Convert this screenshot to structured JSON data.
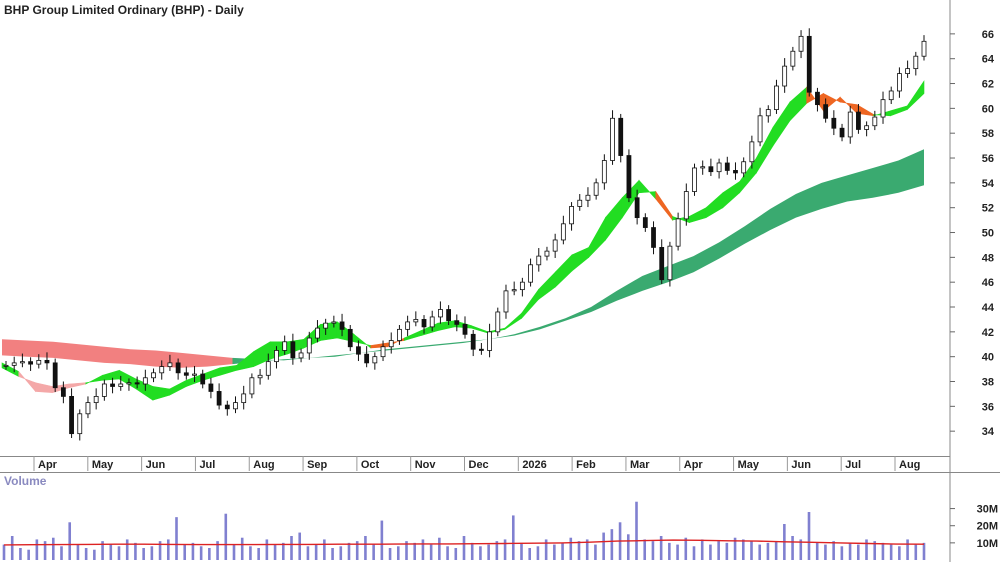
{
  "chart_title": "BHP Group Limited Ordinary (BHP) - Daily",
  "volume_title": "Volume",
  "chart_data": {
    "type": "line",
    "price_axis": {
      "ticks": [
        34,
        36,
        38,
        40,
        42,
        44,
        46,
        48,
        50,
        52,
        54,
        56,
        58,
        60,
        62,
        64,
        66
      ],
      "range": [
        32.0,
        67.6
      ]
    },
    "volume_axis": {
      "ticks": [
        10000000,
        20000000,
        30000000
      ],
      "tick_labels": [
        "10M",
        "20M",
        "30M"
      ],
      "range": [
        0,
        42000000
      ]
    },
    "x_axis_labels": [
      "Apr",
      "May",
      "Jun",
      "Jul",
      "Aug",
      "Sep",
      "Oct",
      "Nov",
      "Dec",
      "2026",
      "Feb",
      "Mar",
      "Apr",
      "May",
      "Jun",
      "Jul",
      "Aug"
    ],
    "price_series": [
      39.3,
      39.5,
      39.6,
      39.4,
      39.7,
      39.5,
      37.5,
      36.8,
      33.8,
      35.4,
      36.3,
      36.8,
      37.8,
      37.6,
      37.8,
      37.9,
      37.8,
      38.3,
      38.7,
      39.2,
      39.5,
      38.7,
      38.5,
      38.6,
      37.8,
      37.2,
      36.1,
      35.8,
      36.3,
      37.0,
      38.3,
      38.5,
      39.6,
      40.5,
      41.2,
      39.9,
      40.3,
      41.5,
      42.3,
      42.7,
      42.8,
      42.2,
      40.8,
      40.2,
      39.5,
      40.0,
      40.8,
      41.3,
      42.2,
      42.8,
      43.0,
      42.4,
      43.2,
      43.8,
      42.9,
      42.6,
      41.8,
      40.6,
      40.5,
      42.0,
      43.6,
      45.3,
      45.4,
      46.0,
      47.4,
      48.1,
      48.5,
      49.4,
      50.7,
      52.1,
      52.6,
      53.0,
      54.0,
      55.8,
      59.2,
      56.2,
      52.8,
      51.2,
      50.4,
      48.8,
      46.2,
      48.9,
      51.1,
      53.3,
      55.2,
      55.3,
      54.9,
      55.6,
      55.0,
      54.8,
      55.7,
      57.3,
      59.4,
      59.9,
      61.8,
      63.4,
      64.6,
      65.8,
      61.3,
      60.3,
      59.2,
      58.4,
      57.7,
      59.7,
      58.3,
      58.6,
      59.3,
      60.7,
      61.4,
      62.8,
      63.2,
      64.2,
      65.4
    ],
    "fast_band_upper": [
      39.5,
      38.8,
      37.2,
      37.1,
      37.5,
      37.8,
      38.5,
      38.9,
      38.2,
      37.6,
      37.4,
      38.1,
      38.6,
      39.1,
      39.3,
      40.4,
      41.2,
      41.2,
      41.4,
      42.6,
      42.8,
      41.8,
      40.7,
      40.8,
      41.5,
      42.1,
      42.7,
      42.9,
      42.5,
      42.0,
      42.3,
      43.5,
      45.4,
      46.8,
      48.2,
      48.8,
      51.2,
      52.8,
      54.2,
      52.7,
      51.0,
      51.3,
      52.0,
      53.2,
      54.1,
      56.0,
      58.5,
      60.5,
      61.7,
      59.8,
      60.9,
      59.6,
      59.4,
      59.8,
      60.2,
      62.2
    ],
    "fast_band_lower": [
      39.1,
      38.4,
      37.9,
      37.6,
      37.8,
      37.9,
      38.1,
      38.2,
      37.4,
      36.5,
      36.9,
      37.6,
      38.1,
      38.5,
      38.9,
      39.2,
      39.8,
      40.2,
      40.7,
      41.3,
      41.5,
      41.2,
      40.9,
      41.1,
      41.3,
      41.7,
      42.1,
      42.4,
      42.3,
      41.9,
      42.2,
      43.1,
      44.6,
      45.6,
      46.9,
      48.0,
      49.4,
      51.2,
      53.2,
      53.3,
      51.3,
      50.8,
      51.2,
      52.0,
      53.2,
      54.8,
      57.0,
      59.0,
      60.4,
      61.2,
      60.5,
      60.3,
      59.5,
      59.4,
      59.9,
      61.2
    ],
    "slow_band_upper": [
      41.4,
      41.3,
      41.2,
      41.0,
      40.8,
      40.6,
      40.5,
      40.3,
      40.1,
      39.9,
      39.8,
      39.7,
      39.9,
      40.1,
      40.3,
      40.5,
      40.7,
      40.9,
      41.1,
      41.4,
      41.8,
      42.4,
      43.1,
      44.0,
      45.3,
      46.5,
      47.3,
      48.1,
      49.2,
      50.5,
      51.9,
      53.1,
      54.0,
      54.6,
      55.2,
      55.8,
      56.7
    ],
    "slow_band_lower": [
      40.1,
      40.0,
      39.9,
      39.7,
      39.5,
      39.4,
      39.2,
      39.1,
      39.2,
      39.4,
      39.6,
      39.8,
      39.9,
      40.0,
      40.3,
      40.6,
      40.8,
      41.0,
      41.2,
      41.4,
      41.7,
      42.2,
      42.9,
      43.6,
      44.5,
      45.3,
      46.0,
      46.8,
      47.9,
      49.1,
      50.2,
      51.2,
      51.9,
      52.5,
      52.8,
      53.2,
      53.8
    ],
    "volume_values": [
      9,
      14,
      7,
      6,
      12,
      11,
      13,
      8,
      22,
      9,
      7,
      6,
      11,
      9,
      8,
      12,
      10,
      7,
      8,
      11,
      12,
      25,
      9,
      10,
      8,
      7,
      11,
      27,
      9,
      13,
      8,
      7,
      12,
      9,
      10,
      14,
      16,
      8,
      9,
      12,
      7,
      8,
      10,
      11,
      14,
      9,
      23,
      7,
      8,
      11,
      10,
      12,
      9,
      13,
      8,
      7,
      14,
      10,
      8,
      9,
      11,
      12,
      26,
      10,
      7,
      8,
      12,
      9,
      10,
      13,
      11,
      12,
      9,
      16,
      18,
      22,
      15,
      34,
      12,
      11,
      14,
      10,
      9,
      13,
      8,
      12,
      9,
      11,
      10,
      13,
      12,
      11,
      9,
      10,
      11,
      21,
      14,
      12,
      28,
      10,
      9,
      11,
      8,
      10,
      9,
      12,
      11,
      10,
      9,
      8,
      12,
      9,
      10
    ],
    "volume_ma": [
      8.8,
      8.9,
      9.0,
      9.1,
      9.2,
      9.2,
      9.1,
      9.0,
      9.0,
      9.0,
      9.1,
      9.1,
      9.2,
      9.2,
      9.3,
      9.4,
      9.4,
      9.5,
      9.6,
      9.8,
      10.0,
      10.4,
      11.0,
      11.3,
      11.6,
      11.5,
      11.2,
      11.0,
      10.6,
      10.3,
      10.0,
      9.6,
      9.3,
      9.2
    ],
    "colors": {
      "candle_up": "#ffffff",
      "candle_down": "#111111",
      "fast_band_bull": "#22dd22",
      "fast_band_bear": "#ee6622",
      "fast_band_weak_bear": "#f4a8a8",
      "slow_band_bull": "#3aaa70",
      "slow_band_bear": "#f28080",
      "volume_bar": "#8080d0",
      "volume_ma": "#dd2222",
      "grid": "#d8d8d8"
    }
  }
}
